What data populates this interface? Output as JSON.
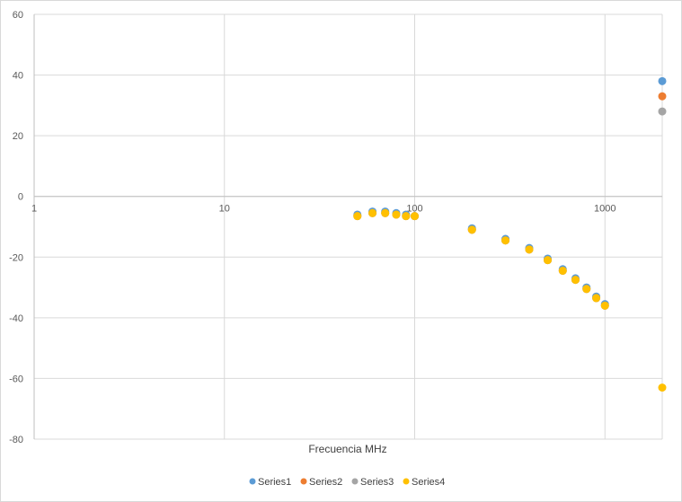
{
  "chart_data": {
    "type": "scatter",
    "title": "",
    "xlabel": "Frecuencia MHz",
    "ylabel": "",
    "xscale": "log",
    "xlim": [
      1,
      2000
    ],
    "ylim": [
      -80,
      60
    ],
    "x_ticks": [
      "1",
      "10",
      "100",
      "1000"
    ],
    "y_ticks": [
      "60",
      "40",
      "20",
      "0",
      "-20",
      "-40",
      "-60",
      "-80"
    ],
    "grid": true,
    "legend_position": "bottom",
    "series": [
      {
        "name": "Series1",
        "color": "#5b9bd5",
        "points": [
          [
            50,
            -6
          ],
          [
            60,
            -5
          ],
          [
            70,
            -5
          ],
          [
            80,
            -5.5
          ],
          [
            90,
            -6
          ],
          [
            100,
            -6.5
          ],
          [
            200,
            -10.5
          ],
          [
            300,
            -14
          ],
          [
            400,
            -17
          ],
          [
            500,
            -20.5
          ],
          [
            600,
            -24
          ],
          [
            700,
            -27
          ],
          [
            800,
            -30
          ],
          [
            900,
            -33
          ],
          [
            1000,
            -35.5
          ],
          [
            2000,
            38
          ]
        ]
      },
      {
        "name": "Series2",
        "color": "#ed7d31",
        "points": [
          [
            50,
            -6.5
          ],
          [
            60,
            -5.5
          ],
          [
            70,
            -5.5
          ],
          [
            80,
            -6
          ],
          [
            90,
            -6.5
          ],
          [
            100,
            -6.5
          ],
          [
            200,
            -11
          ],
          [
            300,
            -14.5
          ],
          [
            400,
            -17.5
          ],
          [
            500,
            -21
          ],
          [
            600,
            -24.5
          ],
          [
            700,
            -27.5
          ],
          [
            800,
            -30.5
          ],
          [
            900,
            -33.5
          ],
          [
            1000,
            -36
          ],
          [
            2000,
            33
          ]
        ]
      },
      {
        "name": "Series3",
        "color": "#a5a5a5",
        "points": [
          [
            50,
            -6.5
          ],
          [
            60,
            -5.5
          ],
          [
            70,
            -5.5
          ],
          [
            80,
            -6
          ],
          [
            90,
            -6.5
          ],
          [
            100,
            -6.5
          ],
          [
            200,
            -11
          ],
          [
            300,
            -14.5
          ],
          [
            400,
            -17.5
          ],
          [
            500,
            -21
          ],
          [
            600,
            -24.5
          ],
          [
            700,
            -27.5
          ],
          [
            800,
            -30.5
          ],
          [
            900,
            -33.5
          ],
          [
            1000,
            -36
          ],
          [
            2000,
            28
          ]
        ]
      },
      {
        "name": "Series4",
        "color": "#ffc000",
        "points": [
          [
            50,
            -6.5
          ],
          [
            60,
            -5.5
          ],
          [
            70,
            -5.5
          ],
          [
            80,
            -6
          ],
          [
            90,
            -6.5
          ],
          [
            100,
            -6.5
          ],
          [
            200,
            -11
          ],
          [
            300,
            -14.5
          ],
          [
            400,
            -17.5
          ],
          [
            500,
            -21
          ],
          [
            600,
            -24.5
          ],
          [
            700,
            -27.5
          ],
          [
            800,
            -30.5
          ],
          [
            900,
            -33.5
          ],
          [
            1000,
            -36
          ],
          [
            2000,
            -63
          ]
        ]
      }
    ]
  }
}
